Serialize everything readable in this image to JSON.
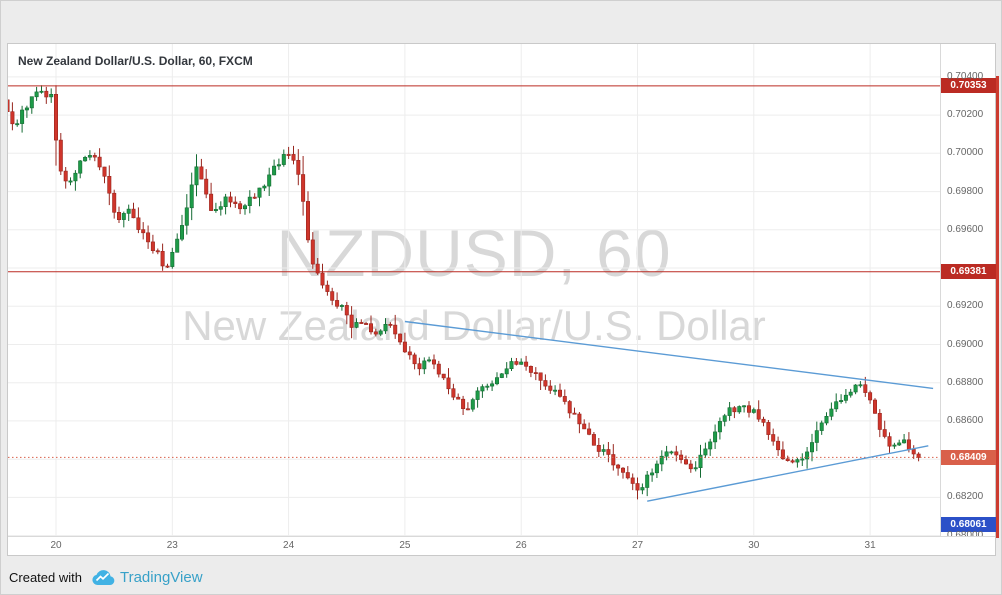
{
  "header": {
    "title": "New Zealand Dollar/U.S. Dollar, 60, FXCM"
  },
  "footer": {
    "created_with": "Created with",
    "brand": "TradingView"
  },
  "chart_data": {
    "type": "candlestick",
    "symbol": "NZDUSD",
    "interval": "60",
    "exchange": "FXCM",
    "title": "New Zealand Dollar/U.S. Dollar, 60, FXCM",
    "watermark": {
      "line1": "NZDUSD, 60",
      "line2": "New Zealand Dollar/U.S. Dollar"
    },
    "ylim": [
      0.67998,
      0.70572
    ],
    "grid": true,
    "y_axis_labels": [
      "0.70400",
      "0.70200",
      "0.70000",
      "0.69800",
      "0.69600",
      "0.69200",
      "0.69000",
      "0.68800",
      "0.68600",
      "0.68200",
      "0.68000"
    ],
    "x_axis_labels": [
      "20",
      "23",
      "24",
      "25",
      "26",
      "27",
      "30",
      "31"
    ],
    "bars_per_day": 24,
    "lead_in_bars": 10,
    "tail_bars": 11,
    "last_price": 0.68409,
    "candle_colors": {
      "up": "#1d9b48",
      "up_border": "#146b33",
      "down": "#cf352b",
      "down_border": "#98261e"
    },
    "levels": [
      {
        "price": 0.70353,
        "label": "0.70353",
        "color": "#bb2b23",
        "style": "solid"
      },
      {
        "price": 0.69381,
        "label": "0.69381",
        "color": "#bb2b23",
        "style": "solid"
      },
      {
        "price": 0.68409,
        "label": "0.68409",
        "color": "#d9604a",
        "style": "dotted",
        "last_price": true
      },
      {
        "price": 0.68061,
        "label": "0.68061",
        "color": "#2b50c8",
        "style": "none"
      }
    ],
    "trendlines": [
      {
        "i1": 82,
        "p1": 0.6912,
        "i2": 191,
        "p2": 0.6877,
        "color": "#5b9bd5"
      },
      {
        "i1": 132,
        "p1": 0.6818,
        "i2": 190,
        "p2": 0.6847,
        "color": "#5b9bd5"
      }
    ],
    "price_path": [
      [
        0,
        0.7028
      ],
      [
        2,
        0.7012
      ],
      [
        4,
        0.7024
      ],
      [
        7,
        0.7031
      ],
      [
        10,
        0.703
      ],
      [
        11,
        0.6997
      ],
      [
        13,
        0.6984
      ],
      [
        15,
        0.6992
      ],
      [
        18,
        0.7001
      ],
      [
        20,
        0.6993
      ],
      [
        23,
        0.6966
      ],
      [
        26,
        0.6971
      ],
      [
        28,
        0.6959
      ],
      [
        31,
        0.695
      ],
      [
        33,
        0.6941
      ],
      [
        34,
        0.6943
      ],
      [
        37,
        0.6966
      ],
      [
        39,
        0.6986
      ],
      [
        40,
        0.6994
      ],
      [
        43,
        0.6969
      ],
      [
        46,
        0.6978
      ],
      [
        49,
        0.6971
      ],
      [
        53,
        0.6982
      ],
      [
        57,
        0.6997
      ],
      [
        59,
        0.7002
      ],
      [
        61,
        0.6986
      ],
      [
        63,
        0.6951
      ],
      [
        64,
        0.6939
      ],
      [
        66,
        0.6931
      ],
      [
        68,
        0.6922
      ],
      [
        70,
        0.6918
      ],
      [
        72,
        0.6908
      ],
      [
        74,
        0.6913
      ],
      [
        76,
        0.6905
      ],
      [
        79,
        0.6912
      ],
      [
        81,
        0.6903
      ],
      [
        83,
        0.6896
      ],
      [
        85,
        0.6887
      ],
      [
        88,
        0.6892
      ],
      [
        90,
        0.6884
      ],
      [
        93,
        0.6873
      ],
      [
        95,
        0.6864
      ],
      [
        98,
        0.6877
      ],
      [
        102,
        0.6882
      ],
      [
        104,
        0.689
      ],
      [
        107,
        0.6892
      ],
      [
        111,
        0.688
      ],
      [
        115,
        0.6872
      ],
      [
        117,
        0.6865
      ],
      [
        120,
        0.6855
      ],
      [
        122,
        0.6847
      ],
      [
        124,
        0.6843
      ],
      [
        126,
        0.6836
      ],
      [
        129,
        0.6828
      ],
      [
        131,
        0.6822
      ],
      [
        133,
        0.6832
      ],
      [
        135,
        0.6838
      ],
      [
        138,
        0.6845
      ],
      [
        142,
        0.6833
      ],
      [
        145,
        0.6846
      ],
      [
        147,
        0.6856
      ],
      [
        150,
        0.6866
      ],
      [
        152,
        0.6868
      ],
      [
        155,
        0.6864
      ],
      [
        159,
        0.685
      ],
      [
        161,
        0.684
      ],
      [
        163,
        0.6836
      ],
      [
        167,
        0.685
      ],
      [
        169,
        0.686
      ],
      [
        172,
        0.687
      ],
      [
        176,
        0.6878
      ],
      [
        178,
        0.6876
      ],
      [
        181,
        0.6855
      ],
      [
        183,
        0.6843
      ],
      [
        185,
        0.6851
      ],
      [
        187,
        0.6845
      ],
      [
        188,
        0.68409
      ]
    ]
  }
}
